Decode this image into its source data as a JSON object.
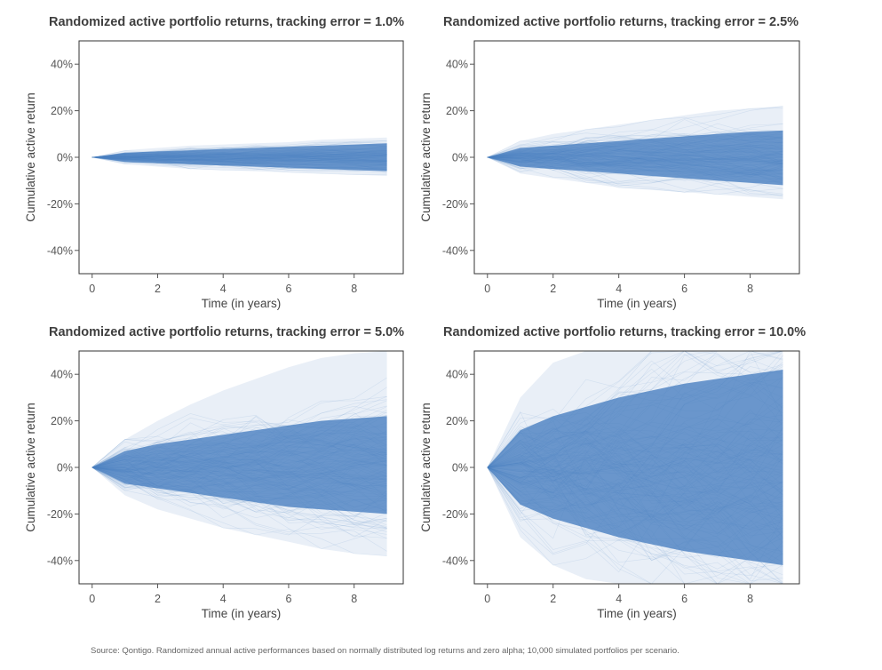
{
  "chart_data": [
    {
      "type": "line",
      "title": "Randomized active portfolio returns, tracking error = 1.0%",
      "xlabel": "Time (in years)",
      "ylabel": "Cumulative active return",
      "xlim": [
        -0.4,
        9.5
      ],
      "ylim": [
        -50,
        50
      ],
      "x_ticks": [
        "0",
        "2",
        "4",
        "6",
        "8"
      ],
      "y_ticks": [
        "40%",
        "20%",
        "0%",
        "-20%",
        "-40%"
      ],
      "tracking_error": 1.0,
      "years": [
        0,
        1,
        2,
        3,
        4,
        5,
        6,
        7,
        8,
        9
      ],
      "band": {
        "x": [
          0,
          1,
          2,
          3,
          4,
          5,
          6,
          7,
          8,
          9
        ],
        "dense_upper": [
          0,
          2,
          2.5,
          3,
          3.5,
          4,
          4.5,
          5,
          5.5,
          6
        ],
        "dense_lower": [
          0,
          -2,
          -2.5,
          -3,
          -3.5,
          -4,
          -4.5,
          -5,
          -5.5,
          -6
        ],
        "max": [
          0,
          3,
          4,
          5,
          5.5,
          6,
          6.5,
          7.5,
          8,
          8.5
        ],
        "min": [
          0,
          -3,
          -4,
          -5,
          -5.5,
          -6,
          -6.5,
          -7,
          -7.5,
          -8
        ]
      },
      "grid": false,
      "color": "#4a7fc1"
    },
    {
      "type": "line",
      "title": "Randomized active portfolio returns, tracking error = 2.5%",
      "xlabel": "Time (in years)",
      "ylabel": "Cumulative active return",
      "xlim": [
        -0.4,
        9.5
      ],
      "ylim": [
        -50,
        50
      ],
      "x_ticks": [
        "0",
        "2",
        "4",
        "6",
        "8"
      ],
      "y_ticks": [
        "40%",
        "20%",
        "0%",
        "-20%",
        "-40%"
      ],
      "tracking_error": 2.5,
      "years": [
        0,
        1,
        2,
        3,
        4,
        5,
        6,
        7,
        8,
        9
      ],
      "band": {
        "x": [
          0,
          1,
          2,
          3,
          4,
          5,
          6,
          7,
          8,
          9
        ],
        "dense_upper": [
          0,
          4,
          5,
          6,
          7,
          8,
          9,
          10,
          11,
          11.5
        ],
        "dense_lower": [
          0,
          -4,
          -5,
          -6,
          -7,
          -8,
          -9,
          -10,
          -11,
          -12
        ],
        "max": [
          0,
          7,
          10,
          12,
          14,
          16,
          18,
          20,
          21,
          22
        ],
        "min": [
          0,
          -7,
          -9,
          -11,
          -13,
          -14,
          -15,
          -16,
          -17,
          -18
        ]
      },
      "grid": false,
      "color": "#4a7fc1"
    },
    {
      "type": "line",
      "title": "Randomized active portfolio returns, tracking error = 5.0%",
      "xlabel": "Time (in years)",
      "ylabel": "Cumulative active return",
      "xlim": [
        -0.4,
        9.5
      ],
      "ylim": [
        -50,
        50
      ],
      "x_ticks": [
        "0",
        "2",
        "4",
        "6",
        "8"
      ],
      "y_ticks": [
        "40%",
        "20%",
        "0%",
        "-20%",
        "-40%"
      ],
      "tracking_error": 5.0,
      "years": [
        0,
        1,
        2,
        3,
        4,
        5,
        6,
        7,
        8,
        9
      ],
      "band": {
        "x": [
          0,
          1,
          2,
          3,
          4,
          5,
          6,
          7,
          8,
          9
        ],
        "dense_upper": [
          0,
          7,
          10,
          12,
          14,
          16,
          18,
          20,
          21,
          22
        ],
        "dense_lower": [
          0,
          -7,
          -9,
          -11,
          -13,
          -15,
          -17,
          -18,
          -19,
          -20
        ],
        "max": [
          0,
          12,
          20,
          27,
          33,
          38,
          43,
          47,
          49,
          50
        ],
        "min": [
          0,
          -12,
          -18,
          -22,
          -26,
          -29,
          -32,
          -35,
          -37,
          -38
        ]
      },
      "grid": false,
      "color": "#4a7fc1"
    },
    {
      "type": "line",
      "title": "Randomized active portfolio returns, tracking error = 10.0%",
      "xlabel": "Time (in years)",
      "ylabel": "Cumulative active return",
      "xlim": [
        -0.4,
        9.5
      ],
      "ylim": [
        -50,
        50
      ],
      "x_ticks": [
        "0",
        "2",
        "4",
        "6",
        "8"
      ],
      "y_ticks": [
        "40%",
        "20%",
        "0%",
        "-20%",
        "-40%"
      ],
      "tracking_error": 10.0,
      "years": [
        0,
        1,
        2,
        3,
        4,
        5,
        6,
        7,
        8,
        9
      ],
      "band": {
        "x": [
          0,
          1,
          2,
          3,
          4,
          5,
          6,
          7,
          8,
          9
        ],
        "dense_upper": [
          0,
          16,
          22,
          26,
          30,
          33,
          36,
          38,
          40,
          42
        ],
        "dense_lower": [
          0,
          -16,
          -22,
          -26,
          -30,
          -33,
          -36,
          -38,
          -40,
          -42
        ],
        "max": [
          0,
          30,
          45,
          50,
          50,
          50,
          50,
          50,
          50,
          50
        ],
        "min": [
          0,
          -30,
          -42,
          -48,
          -50,
          -50,
          -50,
          -50,
          -50,
          -50
        ]
      },
      "grid": false,
      "color": "#4a7fc1"
    }
  ],
  "source_note": "Source: Qontigo. Randomized annual active performances based on normally distributed log returns and zero alpha; 10,000 simulated portfolios per scenario."
}
